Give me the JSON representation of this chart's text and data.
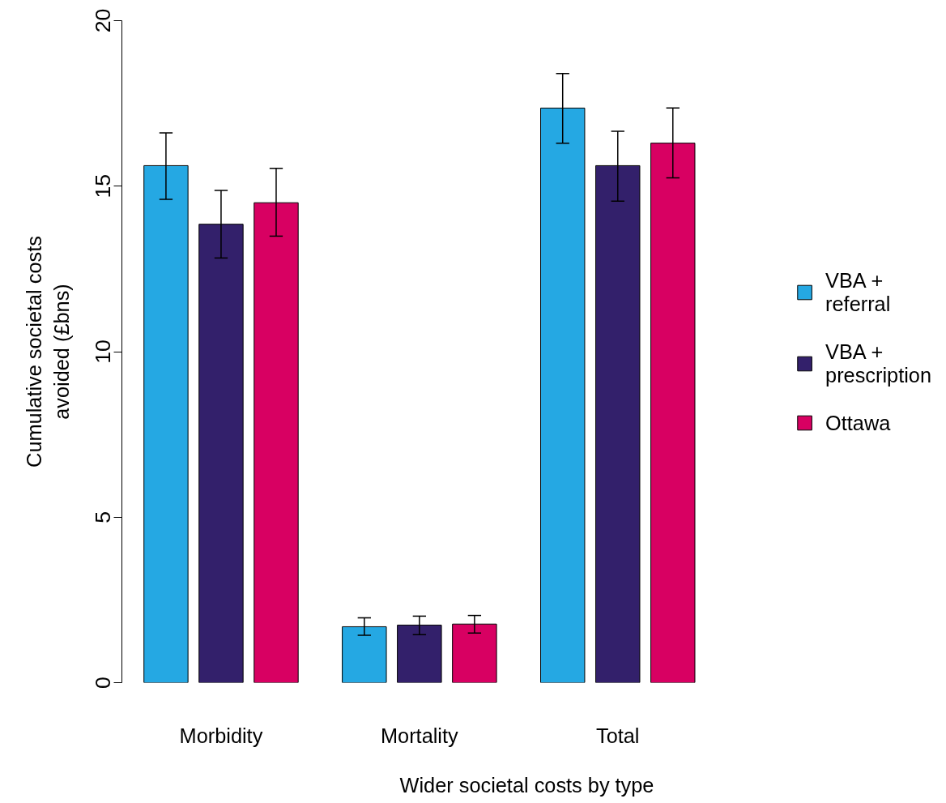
{
  "chart_data": {
    "type": "bar",
    "xlabel": "Wider societal costs by type",
    "ylabel": "Cumulative societal costs\navoided (£bns)",
    "categories": [
      "Morbidity",
      "Mortality",
      "Total"
    ],
    "series": [
      {
        "name": "VBA +\nreferral",
        "color": "#25a8e3",
        "values": [
          15.62,
          1.69,
          17.36
        ],
        "errors": [
          [
            14.6,
            16.61
          ],
          [
            1.43,
            1.96
          ],
          [
            16.3,
            18.4
          ]
        ]
      },
      {
        "name": "VBA +\nprescription",
        "color": "#33206b",
        "values": [
          13.85,
          1.74,
          15.62
        ],
        "errors": [
          [
            12.83,
            14.87
          ],
          [
            1.45,
            2.01
          ],
          [
            14.55,
            16.66
          ]
        ]
      },
      {
        "name": "Ottawa",
        "color": "#d80062",
        "values": [
          14.5,
          1.77,
          16.3
        ],
        "errors": [
          [
            13.49,
            15.54
          ],
          [
            1.5,
            2.03
          ],
          [
            15.25,
            17.36
          ]
        ]
      }
    ],
    "ylim": [
      0,
      20
    ],
    "yticks": [
      0,
      5,
      10,
      15,
      20
    ],
    "grid": false,
    "legend": "right"
  }
}
